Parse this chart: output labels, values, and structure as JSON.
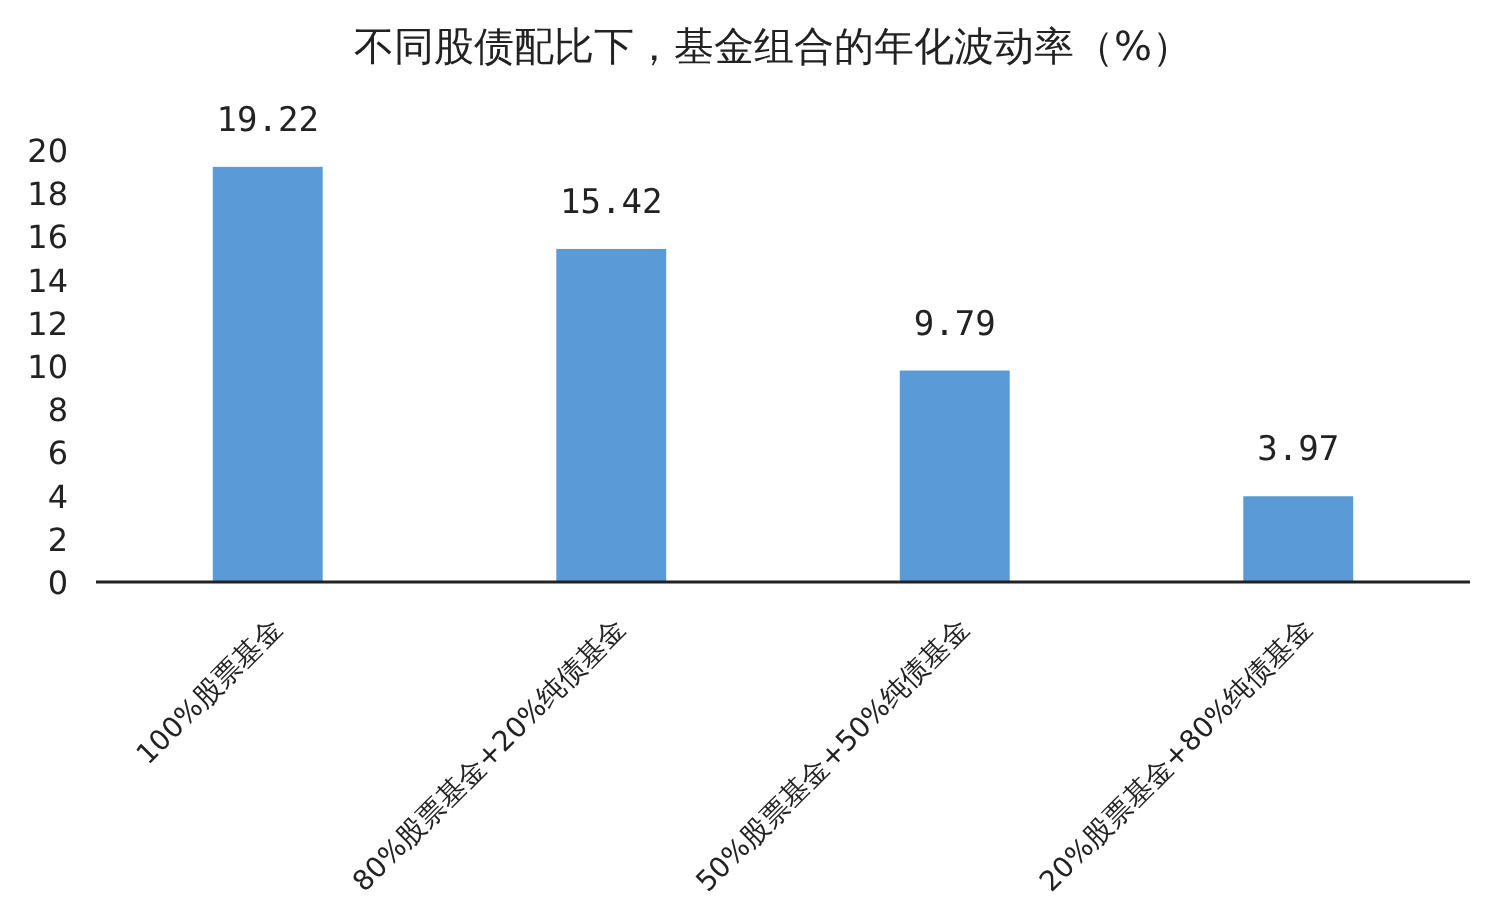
{
  "chart_data": {
    "type": "bar",
    "title": "不同股债配比下，基金组合的年化波动率（%）",
    "categories": [
      "100%股票基金",
      "80%股票基金+20%纯债基金",
      "50%股票基金+50%纯债基金",
      "20%股票基金+80%纯债基金"
    ],
    "values": [
      19.22,
      15.42,
      9.79,
      3.97
    ],
    "color": "#5b9bd5",
    "ylim": [
      0,
      20
    ],
    "yticks": [
      0,
      2,
      4,
      6,
      8,
      10,
      12,
      14,
      16,
      18,
      20
    ],
    "data_labels": true
  }
}
